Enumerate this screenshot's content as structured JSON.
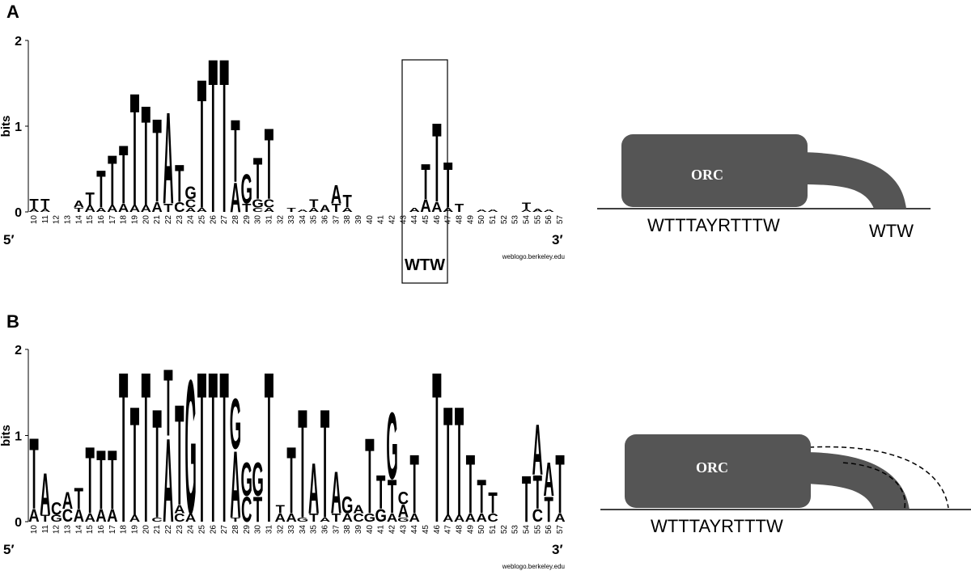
{
  "panels": [
    {
      "label": "A",
      "y_label": "bits",
      "ylim": [
        0,
        2
      ],
      "yticks": [
        0,
        1,
        2
      ],
      "five_prime": "5′",
      "three_prime": "3′",
      "credit": "weblogo.berkeley.edu",
      "box_label": "WTW",
      "positions": [
        {
          "pos": 10,
          "stack": [
            [
              "A",
              0.04
            ],
            [
              "T",
              0.12
            ]
          ]
        },
        {
          "pos": 11,
          "stack": [
            [
              "A",
              0.04
            ],
            [
              "T",
              0.12
            ]
          ]
        },
        {
          "pos": 12,
          "stack": []
        },
        {
          "pos": 13,
          "stack": []
        },
        {
          "pos": 14,
          "stack": [
            [
              "T",
              0.05
            ],
            [
              "A",
              0.08
            ]
          ]
        },
        {
          "pos": 15,
          "stack": [
            [
              "A",
              0.08
            ],
            [
              "T",
              0.15
            ]
          ]
        },
        {
          "pos": 16,
          "stack": [
            [
              "A",
              0.05
            ],
            [
              "T",
              0.45
            ]
          ]
        },
        {
          "pos": 17,
          "stack": [
            [
              "A",
              0.08
            ],
            [
              "T",
              0.6
            ]
          ]
        },
        {
          "pos": 18,
          "stack": [
            [
              "A",
              0.1
            ],
            [
              "T",
              0.7
            ]
          ]
        },
        {
          "pos": 19,
          "stack": [
            [
              "A",
              0.08
            ],
            [
              "T",
              1.35
            ]
          ]
        },
        {
          "pos": 20,
          "stack": [
            [
              "A",
              0.08
            ],
            [
              "T",
              1.2
            ]
          ]
        },
        {
          "pos": 21,
          "stack": [
            [
              "A",
              0.12
            ],
            [
              "T",
              1.0
            ]
          ]
        },
        {
          "pos": 22,
          "stack": [
            [
              "T",
              0.1
            ],
            [
              "A",
              1.1
            ]
          ]
        },
        {
          "pos": 23,
          "stack": [
            [
              "C",
              0.12
            ],
            [
              "T",
              0.45
            ]
          ]
        },
        {
          "pos": 24,
          "stack": [
            [
              "A",
              0.05
            ],
            [
              "C",
              0.1
            ],
            [
              "G",
              0.15
            ]
          ]
        },
        {
          "pos": 25,
          "stack": [
            [
              "A",
              0.05
            ],
            [
              "T",
              1.55
            ]
          ]
        },
        {
          "pos": 26,
          "stack": [
            [
              "T",
              1.85
            ]
          ]
        },
        {
          "pos": 27,
          "stack": [
            [
              "T",
              1.85
            ]
          ]
        },
        {
          "pos": 28,
          "stack": [
            [
              "A",
              0.35
            ],
            [
              "T",
              0.75
            ]
          ]
        },
        {
          "pos": 29,
          "stack": [
            [
              "T",
              0.1
            ],
            [
              "G",
              0.35
            ]
          ]
        },
        {
          "pos": 30,
          "stack": [
            [
              "C",
              0.05
            ],
            [
              "G",
              0.1
            ],
            [
              "T",
              0.5
            ]
          ]
        },
        {
          "pos": 31,
          "stack": [
            [
              "A",
              0.05
            ],
            [
              "C",
              0.1
            ],
            [
              "T",
              0.85
            ]
          ]
        },
        {
          "pos": 32,
          "stack": []
        },
        {
          "pos": 33,
          "stack": [
            [
              "T",
              0.05
            ]
          ]
        },
        {
          "pos": 34,
          "stack": [
            [
              "A",
              0.03
            ]
          ]
        },
        {
          "pos": 35,
          "stack": [
            [
              "A",
              0.05
            ],
            [
              "T",
              0.1
            ]
          ]
        },
        {
          "pos": 36,
          "stack": [
            [
              "A",
              0.08
            ]
          ]
        },
        {
          "pos": 37,
          "stack": [
            [
              "T",
              0.1
            ],
            [
              "A",
              0.22
            ]
          ]
        },
        {
          "pos": 38,
          "stack": [
            [
              "A",
              0.05
            ],
            [
              "T",
              0.15
            ]
          ]
        },
        {
          "pos": 39,
          "stack": []
        },
        {
          "pos": 40,
          "stack": []
        },
        {
          "pos": 41,
          "stack": []
        },
        {
          "pos": 42,
          "stack": []
        },
        {
          "pos": 43,
          "stack": []
        },
        {
          "pos": 44,
          "stack": [
            [
              "A",
              0.05
            ]
          ]
        },
        {
          "pos": 45,
          "stack": [
            [
              "A",
              0.15
            ],
            [
              "T",
              0.42
            ]
          ]
        },
        {
          "pos": 46,
          "stack": [
            [
              "A",
              0.12
            ],
            [
              "T",
              0.95
            ]
          ]
        },
        {
          "pos": 47,
          "stack": [
            [
              "A",
              0.05
            ],
            [
              "T",
              0.55
            ]
          ]
        },
        {
          "pos": 48,
          "stack": [
            [
              "T",
              0.1
            ]
          ]
        },
        {
          "pos": 49,
          "stack": []
        },
        {
          "pos": 50,
          "stack": [
            [
              "A",
              0.03
            ]
          ]
        },
        {
          "pos": 51,
          "stack": [
            [
              "A",
              0.03
            ]
          ]
        },
        {
          "pos": 52,
          "stack": []
        },
        {
          "pos": 53,
          "stack": []
        },
        {
          "pos": 54,
          "stack": [
            [
              "A",
              0.03
            ],
            [
              "T",
              0.08
            ]
          ]
        },
        {
          "pos": 55,
          "stack": [
            [
              "A",
              0.04
            ]
          ]
        },
        {
          "pos": 56,
          "stack": [
            [
              "A",
              0.03
            ]
          ]
        },
        {
          "pos": 57,
          "stack": []
        }
      ],
      "diagram": {
        "protein": "ORC",
        "motif": "WTTTAYRTTTW",
        "tail_motif": "WTW"
      }
    },
    {
      "label": "B",
      "y_label": "bits",
      "ylim": [
        0,
        2
      ],
      "yticks": [
        0,
        1,
        2
      ],
      "five_prime": "5′",
      "three_prime": "3′",
      "credit": "weblogo.berkeley.edu",
      "positions": [
        {
          "pos": 10,
          "stack": [
            [
              "A",
              0.15
            ],
            [
              "T",
              0.85
            ]
          ]
        },
        {
          "pos": 11,
          "stack": [
            [
              "T",
              0.08
            ],
            [
              "A",
              0.5
            ]
          ]
        },
        {
          "pos": 12,
          "stack": [
            [
              "G",
              0.08
            ],
            [
              "C",
              0.15
            ]
          ]
        },
        {
          "pos": 13,
          "stack": [
            [
              "C",
              0.15
            ],
            [
              "A",
              0.2
            ]
          ]
        },
        {
          "pos": 14,
          "stack": [
            [
              "A",
              0.15
            ],
            [
              "T",
              0.25
            ]
          ]
        },
        {
          "pos": 15,
          "stack": [
            [
              "A",
              0.1
            ],
            [
              "T",
              0.8
            ]
          ]
        },
        {
          "pos": 16,
          "stack": [
            [
              "A",
              0.15
            ],
            [
              "T",
              0.7
            ]
          ]
        },
        {
          "pos": 17,
          "stack": [
            [
              "A",
              0.15
            ],
            [
              "T",
              0.7
            ]
          ]
        },
        {
          "pos": 18,
          "stack": [
            [
              "T",
              1.8
            ]
          ]
        },
        {
          "pos": 19,
          "stack": [
            [
              "A",
              0.08
            ],
            [
              "T",
              1.3
            ]
          ]
        },
        {
          "pos": 20,
          "stack": [
            [
              "T",
              1.8
            ]
          ]
        },
        {
          "pos": 21,
          "stack": [
            [
              "C",
              0.05
            ],
            [
              "T",
              1.3
            ]
          ]
        },
        {
          "pos": 22,
          "stack": [
            [
              "A",
              1.0
            ],
            [
              "T",
              0.8
            ]
          ]
        },
        {
          "pos": 23,
          "stack": [
            [
              "C",
              0.1
            ],
            [
              "A",
              0.1
            ],
            [
              "T",
              1.2
            ]
          ]
        },
        {
          "pos": 24,
          "stack": [
            [
              "A",
              0.1
            ],
            [
              "G",
              1.6
            ]
          ]
        },
        {
          "pos": 25,
          "stack": [
            [
              "T",
              1.8
            ]
          ]
        },
        {
          "pos": 26,
          "stack": [
            [
              "T",
              1.8
            ]
          ]
        },
        {
          "pos": 27,
          "stack": [
            [
              "T",
              1.8
            ]
          ]
        },
        {
          "pos": 28,
          "stack": [
            [
              "T",
              0.05
            ],
            [
              "A",
              0.8
            ],
            [
              "G",
              0.6
            ]
          ]
        },
        {
          "pos": 29,
          "stack": [
            [
              "C",
              0.3
            ],
            [
              "G",
              0.4
            ]
          ]
        },
        {
          "pos": 30,
          "stack": [
            [
              "T",
              0.3
            ],
            [
              "G",
              0.4
            ]
          ]
        },
        {
          "pos": 31,
          "stack": [
            [
              "T",
              1.8
            ]
          ]
        },
        {
          "pos": 32,
          "stack": [
            [
              "A",
              0.1
            ],
            [
              "T",
              0.1
            ]
          ]
        },
        {
          "pos": 33,
          "stack": [
            [
              "A",
              0.1
            ],
            [
              "T",
              0.8
            ]
          ]
        },
        {
          "pos": 34,
          "stack": [
            [
              "G",
              0.05
            ],
            [
              "T",
              1.3
            ]
          ]
        },
        {
          "pos": 35,
          "stack": [
            [
              "T",
              0.1
            ],
            [
              "A",
              0.6
            ]
          ]
        },
        {
          "pos": 36,
          "stack": [
            [
              "A",
              0.05
            ],
            [
              "T",
              1.3
            ]
          ]
        },
        {
          "pos": 37,
          "stack": [
            [
              "T",
              0.1
            ],
            [
              "A",
              0.5
            ]
          ]
        },
        {
          "pos": 38,
          "stack": [
            [
              "A",
              0.1
            ],
            [
              "G",
              0.2
            ]
          ]
        },
        {
          "pos": 39,
          "stack": [
            [
              "C",
              0.1
            ],
            [
              "A",
              0.1
            ]
          ]
        },
        {
          "pos": 40,
          "stack": [
            [
              "G",
              0.1
            ],
            [
              "T",
              0.9
            ]
          ]
        },
        {
          "pos": 41,
          "stack": [
            [
              "G",
              0.15
            ],
            [
              "T",
              0.4
            ]
          ]
        },
        {
          "pos": 42,
          "stack": [
            [
              "A",
              0.1
            ],
            [
              "T",
              0.4
            ],
            [
              "G",
              0.8
            ]
          ]
        },
        {
          "pos": 43,
          "stack": [
            [
              "G",
              0.05
            ],
            [
              "A",
              0.15
            ],
            [
              "C",
              0.15
            ]
          ]
        },
        {
          "pos": 44,
          "stack": [
            [
              "A",
              0.1
            ],
            [
              "T",
              0.7
            ]
          ]
        },
        {
          "pos": 45,
          "stack": []
        },
        {
          "pos": 46,
          "stack": [
            [
              "T",
              1.8
            ]
          ]
        },
        {
          "pos": 47,
          "stack": [
            [
              "A",
              0.08
            ],
            [
              "T",
              1.3
            ]
          ]
        },
        {
          "pos": 48,
          "stack": [
            [
              "A",
              0.08
            ],
            [
              "T",
              1.3
            ]
          ]
        },
        {
          "pos": 49,
          "stack": [
            [
              "A",
              0.1
            ],
            [
              "T",
              0.7
            ]
          ]
        },
        {
          "pos": 50,
          "stack": [
            [
              "A",
              0.1
            ],
            [
              "T",
              0.4
            ]
          ]
        },
        {
          "pos": 51,
          "stack": [
            [
              "C",
              0.1
            ],
            [
              "T",
              0.25
            ]
          ]
        },
        {
          "pos": 52,
          "stack": []
        },
        {
          "pos": 53,
          "stack": []
        },
        {
          "pos": 54,
          "stack": [
            [
              "T",
              0.55
            ]
          ]
        },
        {
          "pos": 55,
          "stack": [
            [
              "C",
              0.15
            ],
            [
              "T",
              0.4
            ],
            [
              "A",
              0.6
            ]
          ]
        },
        {
          "pos": 56,
          "stack": [
            [
              "T",
              0.3
            ],
            [
              "A",
              0.4
            ]
          ]
        },
        {
          "pos": 57,
          "stack": [
            [
              "A",
              0.1
            ],
            [
              "T",
              0.7
            ]
          ]
        }
      ],
      "diagram": {
        "protein": "ORC",
        "motif": "WTTTAYRTTTW"
      }
    }
  ]
}
